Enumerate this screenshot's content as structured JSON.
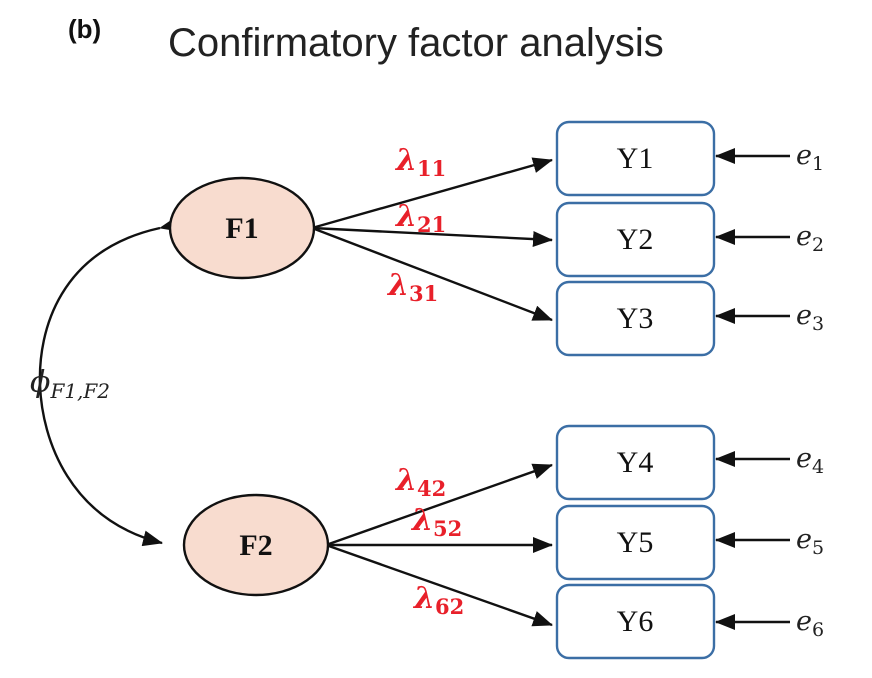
{
  "panel_label": "(b)",
  "title": "Confirmatory factor analysis",
  "colors": {
    "factor_fill": "#f8dccf",
    "box_stroke": "#3b6ea5",
    "loading_text": "#e8202a",
    "arrow": "#111111"
  },
  "factors": [
    {
      "id": "F1",
      "label": "F1"
    },
    {
      "id": "F2",
      "label": "F2"
    }
  ],
  "indicators": [
    {
      "id": "Y1",
      "label": "Y1",
      "error": {
        "symbol": "e",
        "sub": "1"
      }
    },
    {
      "id": "Y2",
      "label": "Y2",
      "error": {
        "symbol": "e",
        "sub": "2"
      }
    },
    {
      "id": "Y3",
      "label": "Y3",
      "error": {
        "symbol": "e",
        "sub": "3"
      }
    },
    {
      "id": "Y4",
      "label": "Y4",
      "error": {
        "symbol": "e",
        "sub": "4"
      }
    },
    {
      "id": "Y5",
      "label": "Y5",
      "error": {
        "symbol": "e",
        "sub": "5"
      }
    },
    {
      "id": "Y6",
      "label": "Y6",
      "error": {
        "symbol": "e",
        "sub": "6"
      }
    }
  ],
  "loadings": [
    {
      "from": "F1",
      "to": "Y1",
      "symbol": "λ",
      "sub": "11"
    },
    {
      "from": "F1",
      "to": "Y2",
      "symbol": "λ",
      "sub": "21"
    },
    {
      "from": "F1",
      "to": "Y3",
      "symbol": "λ",
      "sub": "31"
    },
    {
      "from": "F2",
      "to": "Y4",
      "symbol": "λ",
      "sub": "42"
    },
    {
      "from": "F2",
      "to": "Y5",
      "symbol": "λ",
      "sub": "52"
    },
    {
      "from": "F2",
      "to": "Y6",
      "symbol": "λ",
      "sub": "62"
    }
  ],
  "covariance": {
    "symbol": "ϕ",
    "sub": "F1,F2"
  }
}
